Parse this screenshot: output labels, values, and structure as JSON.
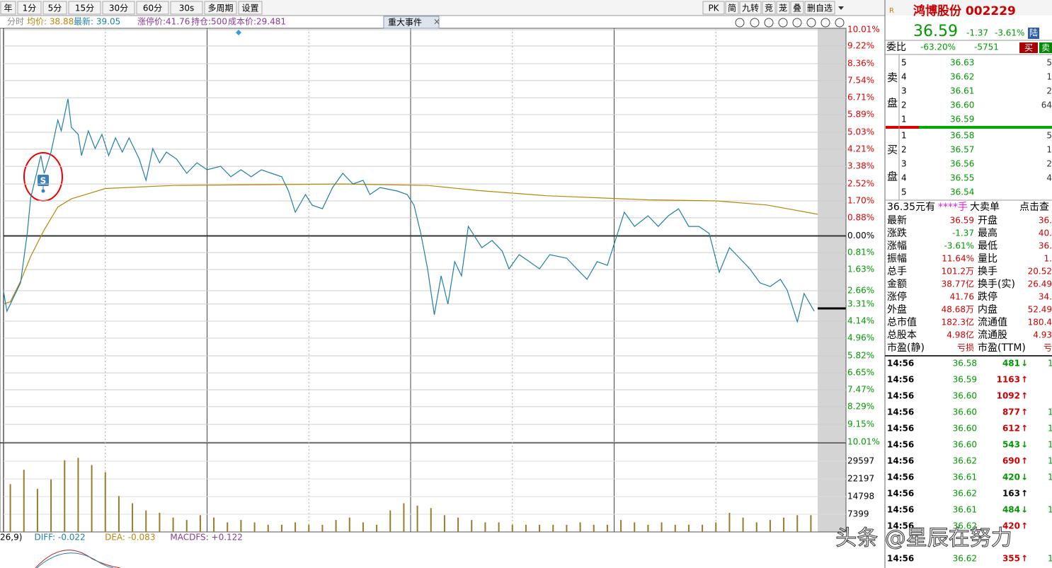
{
  "toolbar": {
    "periods": [
      "年",
      "1分",
      "5分",
      "15分",
      "30分",
      "60分",
      "30s",
      "多周期",
      "设置"
    ],
    "right_buttons": [
      "PK",
      "简",
      "九转",
      "竞",
      "茏",
      "叠",
      "删自选"
    ]
  },
  "info_bar": {
    "items": [
      "分时",
      "均价: 38.88",
      "最新: 39.05",
      "涨停价:41.76",
      "持仓:500",
      "成本价:29.481"
    ],
    "event_button": "重大事件"
  },
  "chart_data": {
    "type": "line",
    "xlim": [
      0,
      240
    ],
    "ylim": [
      -10.01,
      10.01
    ],
    "yticks": [
      {
        "value": 10.01,
        "label": "10.01%"
      },
      {
        "value": 9.22,
        "label": "9.22%"
      },
      {
        "value": 8.36,
        "label": "8.36%"
      },
      {
        "value": 7.54,
        "label": "7.54%"
      },
      {
        "value": 6.71,
        "label": "6.71%"
      },
      {
        "value": 5.89,
        "label": "5.89%"
      },
      {
        "value": 5.03,
        "label": "5.03%"
      },
      {
        "value": 4.21,
        "label": "4.21%"
      },
      {
        "value": 3.38,
        "label": "3.38%"
      },
      {
        "value": 2.52,
        "label": "2.52%"
      },
      {
        "value": 1.7,
        "label": "1.70%"
      },
      {
        "value": 0.88,
        "label": "0.88%"
      },
      {
        "value": 0,
        "label": "0.00%"
      },
      {
        "value": -0.81,
        "label": "0.81%"
      },
      {
        "value": -1.63,
        "label": "1.63%"
      },
      {
        "value": -2.66,
        "label": "2.66%"
      },
      {
        "value": -3.31,
        "label": "3.31%"
      },
      {
        "value": -4.14,
        "label": "4.14%"
      },
      {
        "value": -4.96,
        "label": "4.96%"
      },
      {
        "value": -5.82,
        "label": "5.82%"
      },
      {
        "value": -6.65,
        "label": "6.65%"
      },
      {
        "value": -7.47,
        "label": "7.47%"
      },
      {
        "value": -8.29,
        "label": "8.29%"
      },
      {
        "value": -9.15,
        "label": "9.15%"
      },
      {
        "value": -10.01,
        "label": "10.01%"
      }
    ],
    "grid": true,
    "price": {
      "color": "#1f7fa6",
      "x": [
        0,
        1,
        3,
        5,
        7,
        8,
        10,
        11,
        12,
        14,
        16,
        17,
        19,
        20,
        22,
        23,
        25,
        27,
        29,
        31,
        33,
        35,
        37,
        40,
        42,
        44,
        46,
        48,
        51,
        54,
        57,
        60,
        64,
        67,
        70,
        73,
        76,
        79,
        82,
        84,
        86,
        89,
        91,
        94,
        97,
        100,
        103,
        106,
        108,
        111,
        116,
        119,
        121,
        123,
        125,
        127,
        129,
        131,
        133,
        135,
        137,
        141,
        144,
        147,
        149,
        152,
        155,
        158,
        161,
        166,
        169,
        172,
        175,
        178,
        181,
        183,
        186,
        190,
        193,
        196,
        199,
        202,
        205,
        208,
        211,
        214,
        217,
        220,
        223,
        226,
        229,
        231,
        234,
        236,
        239
      ],
      "values": [
        -2.7,
        -3.66,
        -2.97,
        -2.28,
        0.12,
        1.84,
        3.21,
        3.9,
        3.04,
        4.07,
        5.62,
        5.1,
        6.65,
        5.27,
        4.93,
        3.9,
        5.1,
        4.24,
        4.93,
        3.9,
        4.76,
        4.07,
        4.76,
        3.73,
        2.7,
        4.24,
        3.55,
        4.07,
        3.73,
        3.04,
        3.55,
        3.21,
        3.38,
        2.87,
        3.21,
        2.87,
        3.21,
        3.04,
        2.87,
        2.18,
        1.15,
        2.01,
        1.49,
        1.32,
        2.35,
        3.04,
        2.52,
        2.7,
        2.01,
        2.35,
        2.18,
        2.01,
        1.49,
        0.12,
        -1.6,
        -3.83,
        -1.94,
        -3.31,
        -1.25,
        -1.94,
        0.46,
        -0.57,
        -0.22,
        -0.74,
        -1.6,
        -0.91,
        -1.25,
        -1.6,
        -0.91,
        -1.08,
        -1.6,
        -2.11,
        -1.25,
        -1.43,
        0.12,
        1.15,
        0.46,
        0.98,
        0.46,
        0.98,
        1.32,
        0.46,
        0.46,
        0.12,
        -1.77,
        -0.57,
        -1.08,
        -1.6,
        -2.28,
        -2.46,
        -2.11,
        -2.63,
        -4.17,
        -2.8,
        -3.66
      ]
    },
    "average": {
      "color": "#b8860b",
      "x": [
        0,
        2,
        5,
        8,
        12,
        16,
        20,
        30,
        50,
        100,
        125,
        140,
        160,
        190,
        210,
        225,
        240
      ],
      "values": [
        -3.3,
        -3.2,
        -2.2,
        -1.0,
        0.3,
        1.4,
        1.8,
        2.3,
        2.45,
        2.52,
        2.45,
        2.2,
        1.95,
        1.75,
        1.7,
        1.5,
        1.05
      ]
    },
    "marker": "S",
    "volume": {
      "type": "bar",
      "color": "#9a7b2a",
      "ylim": [
        0,
        36996
      ],
      "yticks": [
        29597,
        22197,
        14798,
        7399
      ],
      "values": [
        20000,
        26000,
        18000,
        22000,
        30000,
        31000,
        28000,
        25000,
        15000,
        12000,
        9000,
        8000,
        6000,
        5000,
        7000,
        6000,
        4000,
        5000,
        4000,
        3000,
        3000,
        4000,
        3000,
        3000,
        5000,
        6000,
        4000,
        3000,
        9000,
        12000,
        11000,
        10000,
        7000,
        6000,
        5000,
        4000,
        4000,
        3000,
        3000,
        3000,
        3000,
        3000,
        4000,
        3000,
        3000,
        5000,
        4000,
        3000,
        4000,
        3000,
        3000,
        3000,
        4000,
        8000,
        6000,
        4000,
        5000,
        6000,
        7000,
        7000
      ]
    },
    "macd_label": [
      "26,9)",
      "DIFF: -0.022",
      "DEA: -0.083",
      "MACDFS: +0.122"
    ]
  },
  "quote": {
    "flag": "R",
    "name": "鸿博股份 002229",
    "price": "36.59",
    "change": "-1.37",
    "change_pct": "-3.61%",
    "market": "陆",
    "ratio_label": "委比",
    "ratio_pct": "-63.20%",
    "ratio_diff": "-5751",
    "buy_button": "买",
    "sell_button": "卖"
  },
  "order_book": {
    "sell_label": [
      "卖",
      "盘"
    ],
    "buy_label": [
      "买",
      "盘"
    ],
    "sell": [
      [
        "5",
        "36.63",
        "5"
      ],
      [
        "4",
        "36.62",
        "1"
      ],
      [
        "3",
        "36.61",
        "2"
      ],
      [
        "2",
        "36.60",
        "64"
      ],
      [
        "1",
        "36.59"
      ]
    ],
    "buy": [
      [
        "1",
        "36.58",
        "5"
      ],
      [
        "2",
        "36.57",
        "1"
      ],
      [
        "3",
        "36.56",
        "2"
      ],
      [
        "4",
        "36.55",
        "4"
      ],
      [
        "5",
        "36.54"
      ]
    ]
  },
  "big_order": [
    "36.35元有",
    "****手",
    "大卖单",
    "点击查"
  ],
  "stats": [
    [
      "最新",
      "36.59",
      "开盘",
      "36."
    ],
    [
      "涨跌",
      "-1.37",
      "最高",
      "40."
    ],
    [
      "涨幅",
      "-3.61%",
      "最低",
      "36."
    ],
    [
      "振幅",
      "11.64%",
      "量比",
      "1."
    ],
    [
      "总手",
      "101.2万",
      "换手",
      "20.52"
    ],
    [
      "金额",
      "38.77亿",
      "换手(实)",
      "26.49"
    ],
    [
      "涨停",
      "41.76",
      "跌停",
      "34."
    ],
    [
      "外盘",
      "48.68万",
      "内盘",
      "52.49"
    ],
    [
      "总市值",
      "182.3亿",
      "流通值",
      "180.4"
    ],
    [
      "总股本",
      "4.98亿",
      "流通股",
      "4.93"
    ],
    [
      "市盈(静)",
      "亏损",
      "市盈(TTM)",
      "亏"
    ]
  ],
  "trades": [
    [
      "14:56",
      "36.58",
      "481",
      "↓",
      "1"
    ],
    [
      "14:56",
      "36.59",
      "1163",
      "↑"
    ],
    [
      "14:56",
      "36.60",
      "1092",
      "↑"
    ],
    [
      "14:56",
      "36.60",
      "877",
      "↑",
      "1"
    ],
    [
      "14:56",
      "36.60",
      "612",
      "↑",
      "1"
    ],
    [
      "14:56",
      "36.60",
      "543",
      "↓",
      "1"
    ],
    [
      "14:56",
      "36.62",
      "690",
      "↑",
      "1"
    ],
    [
      "14:56",
      "36.61",
      "420",
      "↓",
      "1"
    ],
    [
      "14:56",
      "36.62",
      "163",
      "↑"
    ],
    [
      "14:56",
      "36.61",
      "484",
      "↓",
      "1"
    ],
    [
      "14:56",
      "36.62",
      "420",
      "↑"
    ],
    null,
    [
      "14:56",
      "36.62",
      "355",
      "↑",
      "1"
    ]
  ],
  "watermark": "头条 @星辰在努力"
}
